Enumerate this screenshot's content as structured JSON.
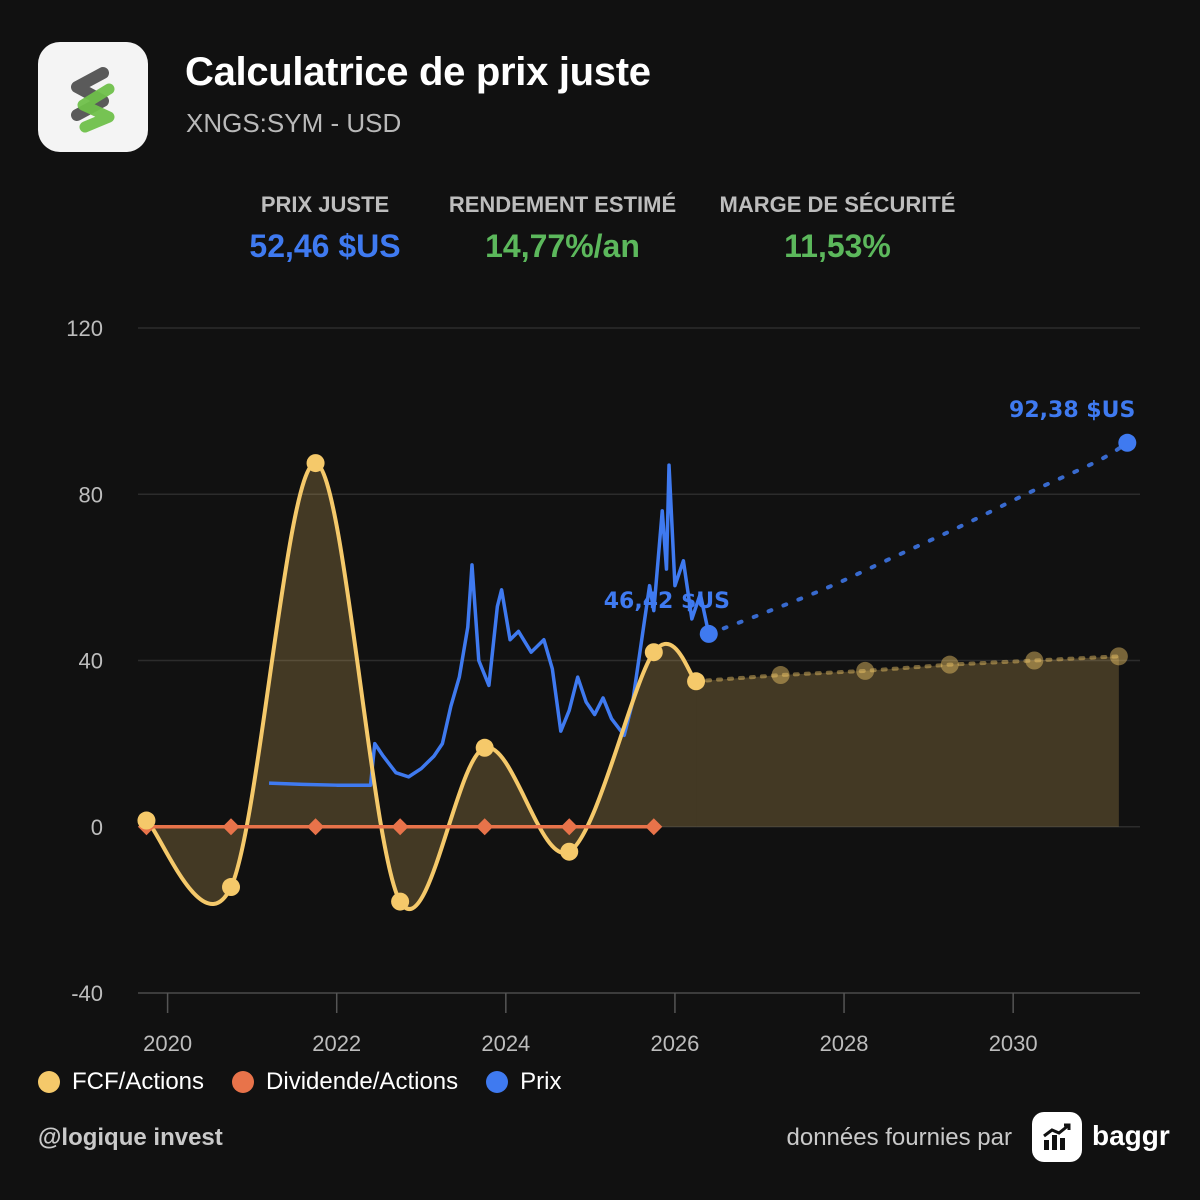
{
  "header": {
    "title": "Calculatrice de prix juste",
    "subtitle": "XNGS:SYM - USD",
    "logo_icon": "symbotic-s-logo-icon"
  },
  "metrics": [
    {
      "label": "PRIX JUSTE",
      "value": "52,46 $US",
      "color": "#3f7af0"
    },
    {
      "label": "RENDEMENT ESTIMÉ",
      "value": "14,77%/an",
      "color": "#5cb85c"
    },
    {
      "label": "MARGE DE SÉCURITÉ",
      "value": "11,53%",
      "color": "#5cb85c"
    }
  ],
  "chart_data": {
    "type": "line",
    "ylim": [
      -40,
      120
    ],
    "yticks": [
      "-40",
      "0",
      "40",
      "80",
      "120"
    ],
    "xlim": [
      2019.65,
      2031.5
    ],
    "xticks": [
      "2020",
      "2022",
      "2024",
      "2026",
      "2028",
      "2030"
    ],
    "grid": true,
    "legend_position": "bottom-left",
    "series": [
      {
        "name": "FCF/Actions",
        "color": "#f5c96a",
        "area": true,
        "points": [
          [
            2019.75,
            1.5
          ],
          [
            2020.75,
            -14.5
          ],
          [
            2021.75,
            87.5
          ],
          [
            2022.75,
            -18
          ],
          [
            2023.75,
            19
          ],
          [
            2024.75,
            -6
          ],
          [
            2025.75,
            42
          ],
          [
            2026.25,
            35
          ]
        ],
        "forecast": [
          [
            2026.25,
            35
          ],
          [
            2027.25,
            36.5
          ],
          [
            2028.25,
            37.5
          ],
          [
            2029.25,
            39
          ],
          [
            2030.25,
            40
          ],
          [
            2031.25,
            41
          ]
        ]
      },
      {
        "name": "Dividende/Actions",
        "color": "#e8734a",
        "points": [
          [
            2019.75,
            0
          ],
          [
            2020.75,
            0
          ],
          [
            2021.75,
            0
          ],
          [
            2022.75,
            0
          ],
          [
            2023.75,
            0
          ],
          [
            2024.75,
            0
          ],
          [
            2025.75,
            0
          ]
        ]
      },
      {
        "name": "Prix",
        "color": "#3f7af0",
        "points": [
          [
            2021.2,
            10.5
          ],
          [
            2021.6,
            10.2
          ],
          [
            2022.0,
            10.0
          ],
          [
            2022.4,
            10.0
          ],
          [
            2022.45,
            20
          ],
          [
            2022.55,
            17
          ],
          [
            2022.7,
            13
          ],
          [
            2022.85,
            12
          ],
          [
            2023.0,
            14
          ],
          [
            2023.15,
            17
          ],
          [
            2023.25,
            20
          ],
          [
            2023.35,
            29
          ],
          [
            2023.45,
            36
          ],
          [
            2023.55,
            48
          ],
          [
            2023.6,
            63
          ],
          [
            2023.68,
            40
          ],
          [
            2023.8,
            34
          ],
          [
            2023.9,
            53
          ],
          [
            2023.95,
            57
          ],
          [
            2024.05,
            45
          ],
          [
            2024.15,
            47
          ],
          [
            2024.3,
            42
          ],
          [
            2024.45,
            45
          ],
          [
            2024.55,
            38
          ],
          [
            2024.65,
            23
          ],
          [
            2024.75,
            28
          ],
          [
            2024.85,
            36
          ],
          [
            2024.95,
            30
          ],
          [
            2025.05,
            27
          ],
          [
            2025.15,
            31
          ],
          [
            2025.25,
            26
          ],
          [
            2025.4,
            22
          ],
          [
            2025.5,
            30
          ],
          [
            2025.6,
            44
          ],
          [
            2025.7,
            58
          ],
          [
            2025.75,
            52
          ],
          [
            2025.85,
            76
          ],
          [
            2025.9,
            62
          ],
          [
            2025.93,
            87
          ],
          [
            2026.0,
            58
          ],
          [
            2026.1,
            64
          ],
          [
            2026.2,
            50
          ],
          [
            2026.3,
            56
          ],
          [
            2026.4,
            46.4
          ]
        ],
        "last_value": 46.42,
        "last_label": "46,42 $US",
        "forecast": [
          [
            2026.4,
            46.4
          ],
          [
            2027.0,
            51
          ],
          [
            2027.8,
            57.5
          ],
          [
            2028.6,
            65
          ],
          [
            2029.4,
            72.5
          ],
          [
            2030.2,
            80.5
          ],
          [
            2031.0,
            88
          ],
          [
            2031.35,
            92.38
          ]
        ],
        "target_value": 92.38,
        "target_label": "92,38 $US"
      }
    ]
  },
  "footer": {
    "handle": "@logique invest",
    "credit": "données fournies par",
    "brand_name": "baggr",
    "brand_icon": "baggr-chart-logo-icon"
  }
}
